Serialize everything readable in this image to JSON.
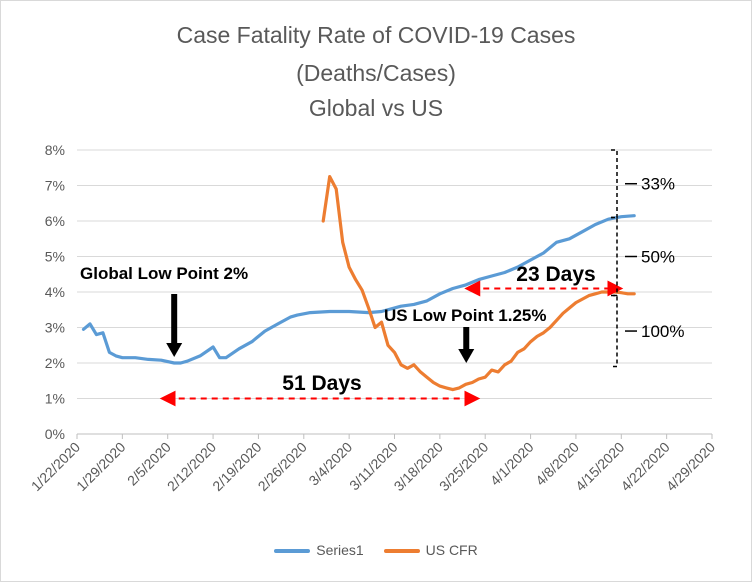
{
  "chart_data": {
    "type": "line",
    "title_lines": [
      "Case Fatality Rate of COVID-19 Cases",
      "(Deaths/Cases)",
      "Global vs US"
    ],
    "x_tick_labels": [
      "1/22/2020",
      "1/29/2020",
      "2/5/2020",
      "2/12/2020",
      "2/19/2020",
      "2/26/2020",
      "3/4/2020",
      "3/11/2020",
      "3/18/2020",
      "3/25/2020",
      "4/1/2020",
      "4/8/2020",
      "4/15/2020",
      "4/22/2020",
      "4/29/2020"
    ],
    "x_range": [
      "1/22/2020",
      "4/29/2020"
    ],
    "y_tick_labels": [
      "0%",
      "1%",
      "2%",
      "3%",
      "4%",
      "5%",
      "6%",
      "7%",
      "8%"
    ],
    "ylim": [
      0,
      8
    ],
    "y_unit": "%",
    "grid": "horizontal",
    "legend_position": "bottom",
    "series": [
      {
        "name": "Series1",
        "color": "#5b9bd5",
        "x": [
          "1/23/2020",
          "1/24/2020",
          "1/25/2020",
          "1/26/2020",
          "1/27/2020",
          "1/28/2020",
          "1/29/2020",
          "1/31/2020",
          "2/2/2020",
          "2/4/2020",
          "2/6/2020",
          "2/7/2020",
          "2/8/2020",
          "2/10/2020",
          "2/12/2020",
          "2/13/2020",
          "2/14/2020",
          "2/16/2020",
          "2/18/2020",
          "2/20/2020",
          "2/22/2020",
          "2/24/2020",
          "2/25/2020",
          "2/27/2020",
          "3/1/2020",
          "3/4/2020",
          "3/7/2020",
          "3/9/2020",
          "3/12/2020",
          "3/14/2020",
          "3/16/2020",
          "3/18/2020",
          "3/20/2020",
          "3/22/2020",
          "3/24/2020",
          "3/26/2020",
          "3/28/2020",
          "3/30/2020",
          "4/1/2020",
          "4/3/2020",
          "4/5/2020",
          "4/7/2020",
          "4/9/2020",
          "4/11/2020",
          "4/13/2020",
          "4/15/2020",
          "4/17/2020"
        ],
        "values": [
          2.95,
          3.1,
          2.8,
          2.85,
          2.3,
          2.2,
          2.15,
          2.15,
          2.1,
          2.08,
          2.0,
          2.0,
          2.05,
          2.2,
          2.45,
          2.15,
          2.15,
          2.4,
          2.6,
          2.9,
          3.1,
          3.3,
          3.35,
          3.42,
          3.45,
          3.45,
          3.42,
          3.45,
          3.6,
          3.65,
          3.75,
          3.95,
          4.1,
          4.2,
          4.35,
          4.45,
          4.55,
          4.7,
          4.9,
          5.1,
          5.4,
          5.5,
          5.7,
          5.9,
          6.05,
          6.12,
          6.15
        ]
      },
      {
        "name": "US CFR",
        "color": "#ed7d31",
        "x": [
          "2/29/2020",
          "3/1/2020",
          "3/2/2020",
          "3/3/2020",
          "3/4/2020",
          "3/5/2020",
          "3/6/2020",
          "3/7/2020",
          "3/8/2020",
          "3/9/2020",
          "3/10/2020",
          "3/11/2020",
          "3/12/2020",
          "3/13/2020",
          "3/14/2020",
          "3/15/2020",
          "3/16/2020",
          "3/17/2020",
          "3/18/2020",
          "3/19/2020",
          "3/20/2020",
          "3/21/2020",
          "3/22/2020",
          "3/23/2020",
          "3/24/2020",
          "3/25/2020",
          "3/26/2020",
          "3/27/2020",
          "3/28/2020",
          "3/29/2020",
          "3/30/2020",
          "3/31/2020",
          "4/1/2020",
          "4/2/2020",
          "4/3/2020",
          "4/4/2020",
          "4/5/2020",
          "4/6/2020",
          "4/7/2020",
          "4/8/2020",
          "4/9/2020",
          "4/10/2020",
          "4/11/2020",
          "4/12/2020",
          "4/13/2020",
          "4/14/2020",
          "4/15/2020",
          "4/16/2020",
          "4/17/2020"
        ],
        "values": [
          6.0,
          7.25,
          6.9,
          5.4,
          4.7,
          4.35,
          4.05,
          3.55,
          3.0,
          3.15,
          2.5,
          2.3,
          1.95,
          1.85,
          1.95,
          1.75,
          1.6,
          1.45,
          1.35,
          1.3,
          1.25,
          1.3,
          1.4,
          1.45,
          1.55,
          1.6,
          1.8,
          1.75,
          1.95,
          2.05,
          2.3,
          2.4,
          2.6,
          2.75,
          2.85,
          3.0,
          3.2,
          3.4,
          3.55,
          3.7,
          3.8,
          3.9,
          3.95,
          4.0,
          4.0,
          4.0,
          3.98,
          3.95,
          3.95
        ]
      }
    ],
    "annotations": [
      {
        "text": "Global Low Point 2%",
        "arrow_to": {
          "x": "2/6/2020",
          "y": 2.0
        }
      },
      {
        "text": "US Low Point 1.25%",
        "arrow_to": {
          "x": "3/23/2020",
          "y": 1.25
        }
      },
      {
        "text": "51 Days",
        "span": [
          "2/5/2020",
          "3/23/2020"
        ],
        "y": 1.0
      },
      {
        "text": "23 Days",
        "span": [
          "3/23/2020",
          "4/15/2020"
        ],
        "y": 4.1
      },
      {
        "text": "33%",
        "y_range": [
          6.1,
          8.0
        ]
      },
      {
        "text": "50%",
        "y_range": [
          3.9,
          6.1
        ]
      },
      {
        "text": "100%",
        "y_range": [
          1.9,
          3.9
        ]
      }
    ]
  }
}
